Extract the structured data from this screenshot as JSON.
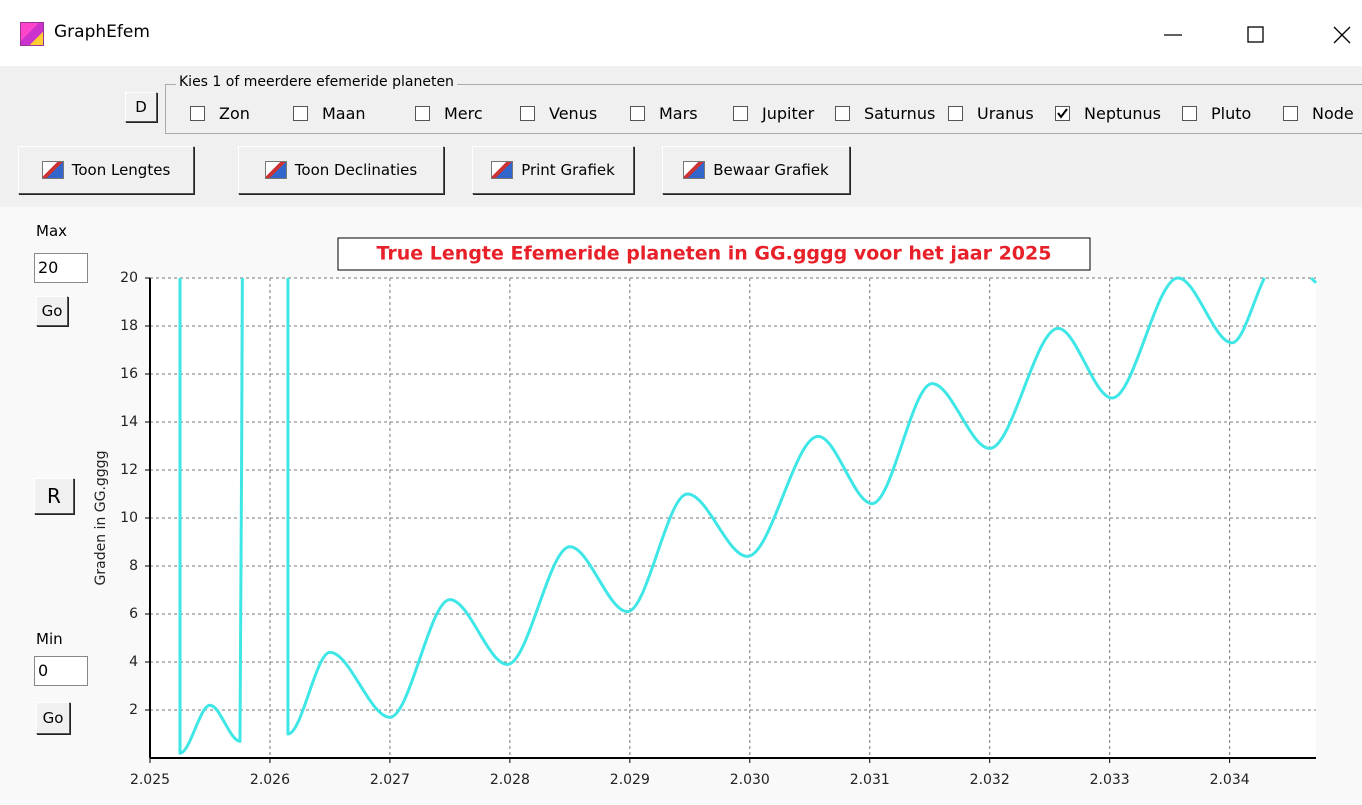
{
  "window": {
    "title": "GraphEfem"
  },
  "planet_group": {
    "label": "Kies 1 of meerdere efemeride planeten",
    "button": "D",
    "planets": [
      {
        "name": "Zon",
        "checked": false
      },
      {
        "name": "Maan",
        "checked": false
      },
      {
        "name": "Merc",
        "checked": false
      },
      {
        "name": "Venus",
        "checked": false
      },
      {
        "name": "Mars",
        "checked": false
      },
      {
        "name": "Jupiter",
        "checked": false
      },
      {
        "name": "Saturnus",
        "checked": false
      },
      {
        "name": "Uranus",
        "checked": false
      },
      {
        "name": "Neptunus",
        "checked": true
      },
      {
        "name": "Pluto",
        "checked": false
      },
      {
        "name": "Node",
        "checked": false
      }
    ]
  },
  "toolbar": [
    "Toon Lengtes",
    "Toon Declinaties",
    "Print Grafiek",
    "Bewaar Grafiek"
  ],
  "side_panel": {
    "max_label": "Max",
    "max_value": "20",
    "max_button": "Go",
    "reset_button": "R",
    "min_label": "Min",
    "min_value": "0",
    "min_button": "Go"
  },
  "chart_data": {
    "type": "line",
    "title": "True Lengte Efemeride planeten in GG.gggg voor het jaar 2025",
    "ylabel": "Graden in GG.gggg",
    "xlim": [
      2.025,
      2.03472
    ],
    "ylim": [
      0,
      20
    ],
    "xticks": [
      2.025,
      2.026,
      2.027,
      2.028,
      2.029,
      {
        "value": 2.03,
        "label": "2.030"
      },
      2.031,
      2.032,
      2.033,
      2.034
    ],
    "yticks": [
      2,
      4,
      6,
      8,
      10,
      12,
      14,
      16,
      18,
      20
    ],
    "grid": true,
    "series": [
      {
        "color": "#3ee6e6",
        "x": [
          2.02525,
          2.02525,
          2.0255,
          2.02575,
          2.02577,
          null,
          2.02615,
          2.02615,
          2.0265,
          2.027,
          2.0275,
          2.02798,
          2.0285,
          2.02898,
          2.02948,
          2.02998,
          2.03057,
          2.03102,
          2.03152,
          2.032,
          2.03257,
          2.03302,
          2.03357,
          2.03402,
          2.03429,
          null,
          2.03468,
          2.03472
        ],
        "values": [
          20,
          0.2,
          2.2,
          0.7,
          20,
          null,
          20,
          1.0,
          4.4,
          1.7,
          6.6,
          3.9,
          8.8,
          6.1,
          11.0,
          8.4,
          13.4,
          10.6,
          15.6,
          12.9,
          17.9,
          15.0,
          20.0,
          17.3,
          20,
          null,
          20,
          19.8
        ]
      }
    ]
  }
}
